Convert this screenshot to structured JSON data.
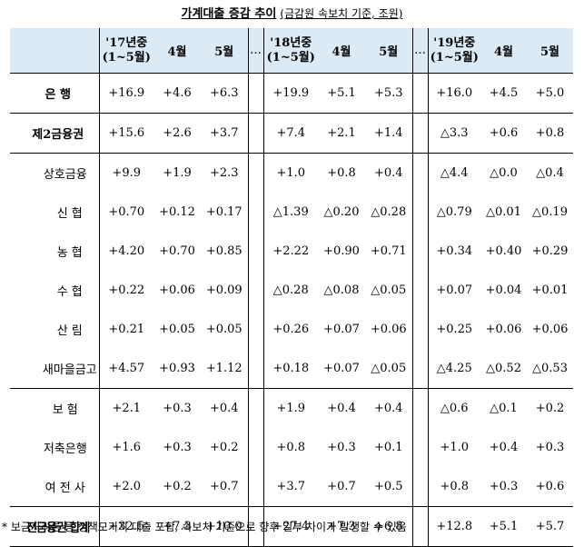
{
  "title": {
    "main": "가계대출 증감 추이",
    "sub": "(금감원 속보치 기준, 조원)"
  },
  "headers": {
    "g17": [
      "'17년중",
      "(1~5월)"
    ],
    "g18": [
      "'18년중",
      "(1~5월)"
    ],
    "g19": [
      "'19년중",
      "(1~5월)"
    ],
    "m4": "4월",
    "m5": "5월",
    "dots": "…"
  },
  "rows": [
    {
      "label": "은    행",
      "level": 0,
      "v": [
        "+16.9",
        "+4.6",
        "+6.3",
        "+19.9",
        "+5.1",
        "+5.3",
        "+16.0",
        "+4.5",
        "+5.0"
      ]
    },
    {
      "label": "제2금융권",
      "level": 0,
      "v": [
        "+15.6",
        "+2.6",
        "+3.7",
        "+7.4",
        "+2.1",
        "+1.4",
        "△3.3",
        "+0.6",
        "+0.8"
      ]
    },
    {
      "label": "상호금융",
      "level": 1,
      "v": [
        "+9.9",
        "+1.9",
        "+2.3",
        "+1.0",
        "+0.8",
        "+0.4",
        "△4.4",
        "△0.0",
        "△0.4"
      ]
    },
    {
      "label": "신  협",
      "level": 2,
      "v": [
        "+0.70",
        "+0.12",
        "+0.17",
        "△1.39",
        "△0.20",
        "△0.28",
        "△0.79",
        "△0.01",
        "△0.19"
      ]
    },
    {
      "label": "농  협",
      "level": 2,
      "v": [
        "+4.20",
        "+0.70",
        "+0.85",
        "+2.22",
        "+0.90",
        "+0.71",
        "+0.34",
        "+0.40",
        "+0.29"
      ]
    },
    {
      "label": "수  협",
      "level": 2,
      "v": [
        "+0.22",
        "+0.06",
        "+0.09",
        "△0.28",
        "△0.08",
        "△0.05",
        "+0.07",
        "+0.04",
        "+0.01"
      ]
    },
    {
      "label": "산  림",
      "level": 2,
      "v": [
        "+0.21",
        "+0.05",
        "+0.05",
        "+0.26",
        "+0.07",
        "+0.06",
        "+0.25",
        "+0.06",
        "+0.06"
      ]
    },
    {
      "label": "새마을금고",
      "level": 2,
      "v": [
        "+4.57",
        "+0.93",
        "+1.12",
        "+0.18",
        "+0.07",
        "△0.05",
        "△4.25",
        "△0.52",
        "△0.53"
      ]
    },
    {
      "label": "보    험",
      "level": 1,
      "v": [
        "+2.1",
        "+0.3",
        "+0.4",
        "+1.9",
        "+0.4",
        "+0.4",
        "△0.6",
        "△0.1",
        "+0.2"
      ]
    },
    {
      "label": "저축은행",
      "level": 1,
      "v": [
        "+1.6",
        "+0.3",
        "+0.2",
        "+0.8",
        "+0.3",
        "+0.1",
        "+1.0",
        "+0.4",
        "+0.3"
      ]
    },
    {
      "label": "여 전 사",
      "level": 1,
      "v": [
        "+2.0",
        "+0.2",
        "+0.7",
        "+3.7",
        "+0.7",
        "+0.5",
        "+0.8",
        "+0.3",
        "+0.6"
      ]
    },
    {
      "label": "전금융권 합계",
      "level": 0,
      "v": [
        "+32.5",
        "+7.3",
        "+10.0",
        "+27.4",
        "+7.3",
        "+6.8",
        "+12.8",
        "+5.1",
        "+5.7"
      ]
    }
  ],
  "note": "* 보금자리론 등 정책모기지 대출 포함, 속보치 기준으로 향후 일부 차이가 발생할 수 있음"
}
